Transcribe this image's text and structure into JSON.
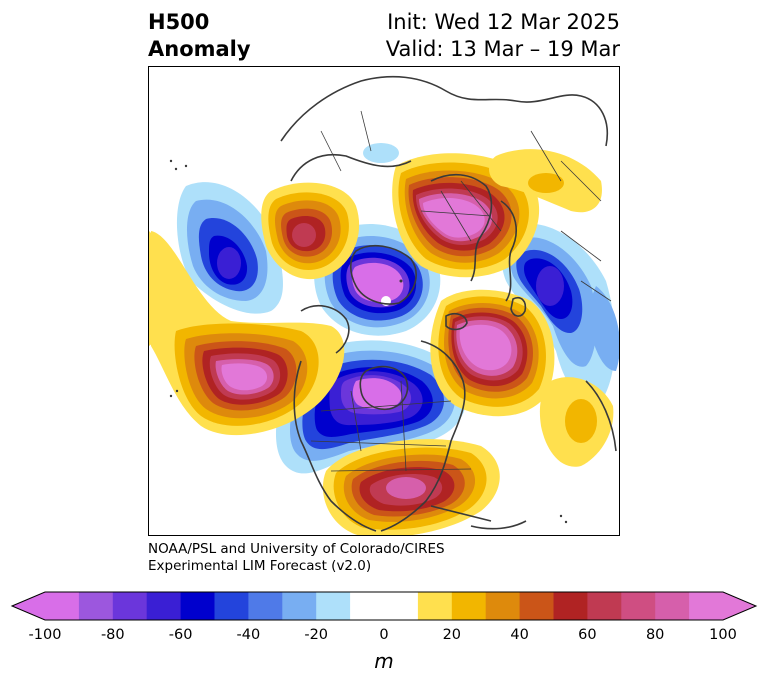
{
  "title": {
    "left_line1": "H500",
    "left_line2": "Anomaly",
    "right_line1": "Init: Wed 12 Mar 2025",
    "right_line2": "Valid: 13 Mar – 19 Mar"
  },
  "credit": {
    "line1": "NOAA/PSL and University of Colorado/CIRES",
    "line2": "Experimental LIM Forecast (v2.0)"
  },
  "colorbar": {
    "ticks": [
      "-100",
      "-80",
      "-60",
      "-40",
      "-20",
      "0",
      "20",
      "40",
      "60",
      "80",
      "100"
    ],
    "unit": "m",
    "colors": [
      "#d86ee8",
      "#9c57de",
      "#6b36db",
      "#3a1fd4",
      "#0000cd",
      "#2344dc",
      "#4f7ae8",
      "#78aef2",
      "#aee0fa",
      "#ffffff",
      "#ffffff",
      "#ffe04e",
      "#f2b600",
      "#de8a0c",
      "#cb5518",
      "#b02323",
      "#c03a52",
      "#cf4e82",
      "#d65fab",
      "#e278d8"
    ]
  },
  "map": {
    "projection": "north-polar-stereographic",
    "features": [
      {
        "type": "negative-anomaly",
        "region": "central Canada / Hudson Bay",
        "min": -100
      },
      {
        "type": "negative-anomaly",
        "region": "Arctic Ocean north of Alaska",
        "min": -100
      },
      {
        "type": "negative-anomaly",
        "region": "Siberia",
        "min": -60
      },
      {
        "type": "negative-anomaly",
        "region": "Arabian Sea / India",
        "min": -60
      },
      {
        "type": "positive-anomaly",
        "region": "North Pacific south of Alaska",
        "max": 100
      },
      {
        "type": "positive-anomaly",
        "region": "Scandinavia / Barents Sea",
        "max": 100
      },
      {
        "type": "positive-anomaly",
        "region": "North Atlantic near Iceland",
        "max": 100
      },
      {
        "type": "positive-anomaly",
        "region": "Mediterranean / North Africa",
        "max": 60
      },
      {
        "type": "positive-anomaly",
        "region": "southeastern United States",
        "max": 80
      }
    ]
  }
}
